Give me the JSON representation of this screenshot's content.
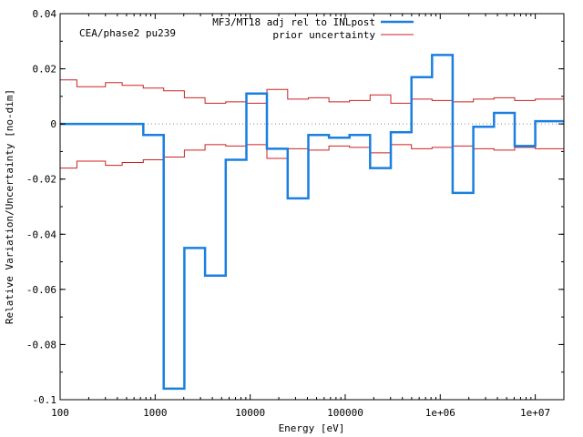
{
  "chart_data": {
    "type": "line",
    "title": "",
    "annotation": "CEA/phase2 pu239",
    "xlabel": "Energy [eV]",
    "ylabel": "Relative Variation/Uncertainty [no-dim]",
    "x_scale": "log",
    "xlim": [
      100,
      20000000
    ],
    "ylim": [
      -0.1,
      0.04
    ],
    "x_ticks": [
      {
        "value": 100,
        "label": "100"
      },
      {
        "value": 1000,
        "label": "1000"
      },
      {
        "value": 10000,
        "label": "10000"
      },
      {
        "value": 100000,
        "label": "100000"
      },
      {
        "value": 1000000,
        "label": "1e+06"
      },
      {
        "value": 10000000,
        "label": "1e+07"
      }
    ],
    "y_ticks": [
      {
        "value": 0.04,
        "label": "0.04"
      },
      {
        "value": 0.02,
        "label": "0.02"
      },
      {
        "value": 0,
        "label": "0"
      },
      {
        "value": -0.02,
        "label": "-0.02"
      },
      {
        "value": -0.04,
        "label": "-0.04"
      },
      {
        "value": -0.06,
        "label": "-0.06"
      },
      {
        "value": -0.08,
        "label": "-0.08"
      },
      {
        "value": -0.1,
        "label": "-0.1"
      }
    ],
    "legend_position": "top-right",
    "bin_edges": [
      100,
      150,
      300,
      450,
      750,
      1230,
      2030,
      3350,
      5530,
      9120,
      15000,
      24800,
      40900,
      67400,
      111000,
      183000,
      302000,
      498000,
      821000,
      1350000,
      2230000,
      3680000,
      6070000,
      10000000,
      20000000
    ],
    "series": [
      {
        "name": "MF3/MT18 adj rel to INLpost",
        "color": "#1a7fe0",
        "style": "step",
        "values": [
          0,
          0,
          0,
          0,
          -0.004,
          -0.096,
          -0.045,
          -0.055,
          -0.013,
          0.011,
          -0.009,
          -0.027,
          -0.004,
          -0.005,
          -0.004,
          -0.016,
          -0.003,
          0.017,
          0.025,
          -0.025,
          -0.001,
          0.004,
          -0.008,
          0.001
        ]
      },
      {
        "name": "prior uncertainty",
        "color": "#cc2222",
        "style": "step-symmetric",
        "values": [
          0.016,
          0.0135,
          0.015,
          0.014,
          0.013,
          0.012,
          0.0095,
          0.0075,
          0.008,
          0.0075,
          0.0125,
          0.009,
          0.0095,
          0.008,
          0.0085,
          0.0105,
          0.0075,
          0.009,
          0.0085,
          0.008,
          0.009,
          0.0095,
          0.0085,
          0.009
        ]
      }
    ]
  }
}
